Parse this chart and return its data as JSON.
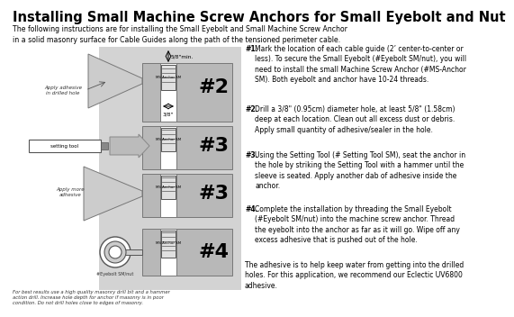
{
  "title": "Installing Small Machine Screw Anchors for Small Eyebolt and Nut",
  "subtitle": "The following instructions are for installing the Small Eyebolt and Small Machine Screw Anchor\nin a solid masonry surface for Cable Guides along the path of the tensioned perimeter cable.",
  "step1_bold": "#1.",
  "step1_text": "Mark the location of each cable guide (2’ center-to-center or\nless). To secure the Small Eyebolt (#Eyebolt SM/nut), you will\nneed to install the small Machine Screw Anchor (#MS-Anchor\nSM). Both eyebolt and anchor have 10-24 threads.",
  "step2_bold": "#2.",
  "step2_text": "Drill a 3/8\" (0.95cm) diameter hole, at least 5/8\" (1.58cm)\ndeep at each location. Clean out all excess dust or debris.\nApply small quantity of adhesive/sealer in the hole.",
  "step3_bold": "#3.",
  "step3_text": "Using the Setting Tool (# Setting Tool SM), seat the anchor in\nthe hole by striking the Setting Tool with a hammer until the\nsleeve is seated. Apply another dab of adhesive inside the\nanchor.",
  "step4_bold": "#4.",
  "step4_text": "Complete the installation by threading the Small Eyebolt\n(#Eyebolt SM/nut) into the machine screw anchor. Thread\nthe eyebolt into the anchor as far as it will go. Wipe off any\nexcess adhesive that is pushed out of the hole.",
  "closing": "The adhesive is to help keep water from getting into the drilled\nholes. For this application, we recommend our Eclectic UV6800\nadhesive.",
  "footnote": "For best results use a high quality masonry drill bit and a hammer\naction drill. Increase hole depth for anchor if masonry is in poor\ncondition. Do not drill holes close to edges of masonry.",
  "bg_color": "#ffffff",
  "panel_color": "#d3d3d3",
  "text_color": "#000000",
  "label2": "#2",
  "label3a": "#3",
  "label3b": "#3",
  "label4": "#4",
  "apply_adhesive": "Apply adhesive\nin drilled hole",
  "apply_more": "Apply more\nadhesive",
  "eyebolt_label": "#Eyebolt SM/nut",
  "setting_tool_label": "setting tool",
  "ms_anchor_label": "MS Anchor SM",
  "dim_label": "5/8\"min.",
  "dim_label2": "3/8\""
}
